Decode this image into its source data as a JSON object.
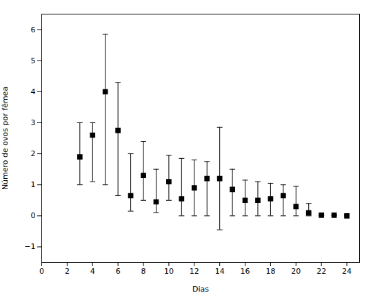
{
  "chart_data": {
    "type": "scatter",
    "x": [
      3,
      4,
      5,
      6,
      7,
      8,
      9,
      10,
      11,
      12,
      13,
      14,
      15,
      16,
      17,
      18,
      19,
      20,
      21,
      22,
      23,
      24
    ],
    "values": [
      1.9,
      2.6,
      4.0,
      2.75,
      0.65,
      1.3,
      0.45,
      1.1,
      0.55,
      0.9,
      1.2,
      1.2,
      0.85,
      0.5,
      0.5,
      0.55,
      0.65,
      0.3,
      0.1,
      0.02,
      0.02,
      0.0
    ],
    "yerr_upper": [
      1.1,
      0.4,
      1.85,
      1.55,
      1.35,
      1.1,
      1.05,
      0.85,
      1.3,
      0.9,
      0.55,
      1.65,
      0.65,
      0.65,
      0.6,
      0.5,
      0.35,
      0.65,
      0.3,
      0.0,
      0.0,
      0.0
    ],
    "yerr_lower": [
      0.9,
      1.5,
      3.0,
      2.1,
      0.5,
      0.8,
      0.35,
      0.6,
      0.55,
      0.9,
      1.2,
      1.65,
      0.85,
      0.5,
      0.5,
      0.55,
      0.65,
      0.3,
      0.1,
      0.0,
      0.0,
      0.0
    ],
    "xlabel": "Dias",
    "ylabel": "Número de ovos por fêmea",
    "xlim": [
      0,
      25
    ],
    "ylim": [
      -1.5,
      6.5
    ],
    "xticks": [
      0,
      2,
      4,
      6,
      8,
      10,
      12,
      14,
      16,
      18,
      20,
      22,
      24
    ],
    "yticks": [
      -1,
      0,
      1,
      2,
      3,
      4,
      5,
      6
    ],
    "color": "black",
    "marker": "square",
    "grid": false
  }
}
